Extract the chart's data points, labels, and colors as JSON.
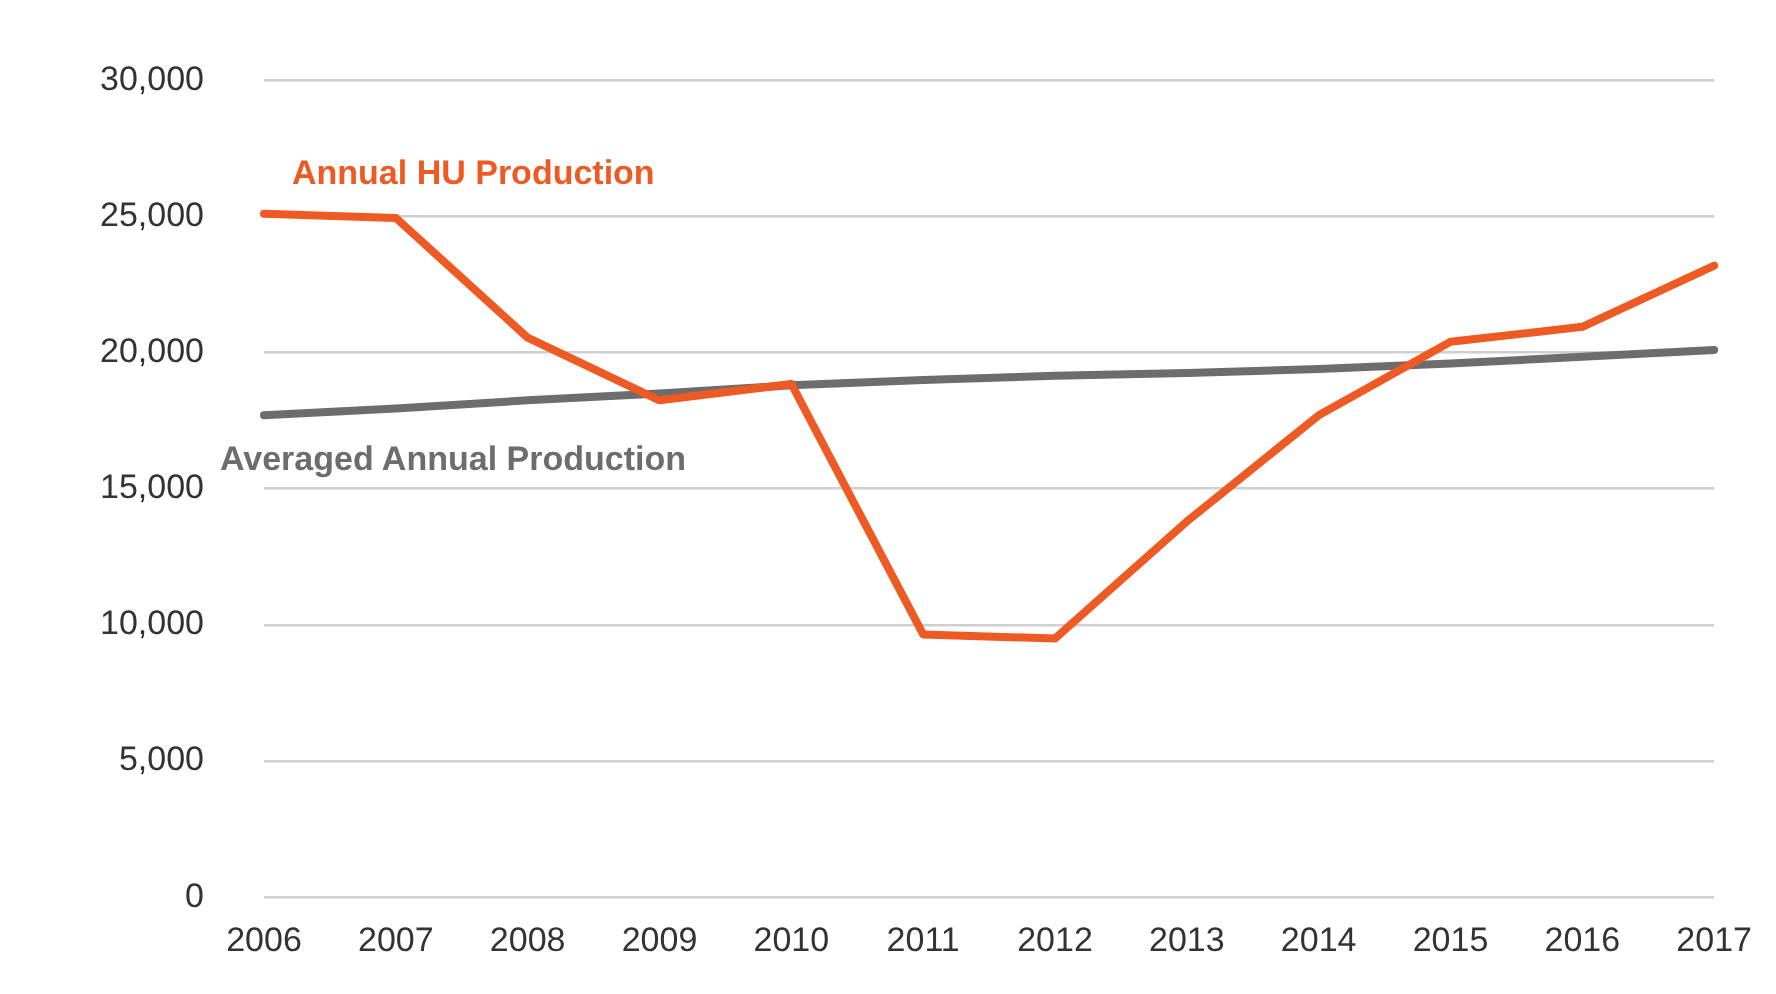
{
  "chart_data": {
    "type": "line",
    "categories": [
      "2006",
      "2007",
      "2008",
      "2009",
      "2010",
      "2011",
      "2012",
      "2013",
      "2014",
      "2015",
      "2016",
      "2017"
    ],
    "series": [
      {
        "name": "Annual HU Production",
        "color": "#ee5a24",
        "values": [
          25100,
          24950,
          20550,
          18250,
          18850,
          9650,
          9500,
          13800,
          17700,
          20400,
          20950,
          23200
        ]
      },
      {
        "name": "Averaged Annual Production",
        "color": "#6d6d6d",
        "values": [
          17700,
          17950,
          18250,
          18500,
          18800,
          19000,
          19150,
          19250,
          19400,
          19600,
          19850,
          20100
        ]
      }
    ],
    "ylim": [
      0,
      30000
    ],
    "yticks": [
      {
        "value": 0,
        "label": "0"
      },
      {
        "value": 5000,
        "label": "5,000"
      },
      {
        "value": 10000,
        "label": "10,000"
      },
      {
        "value": 15000,
        "label": "15,000"
      },
      {
        "value": 20000,
        "label": "20,000"
      },
      {
        "value": 25000,
        "label": "25,000"
      },
      {
        "value": 30000,
        "label": "30,000"
      }
    ],
    "grid": "y",
    "legend": false,
    "marker": "none",
    "line_style": "solid"
  }
}
